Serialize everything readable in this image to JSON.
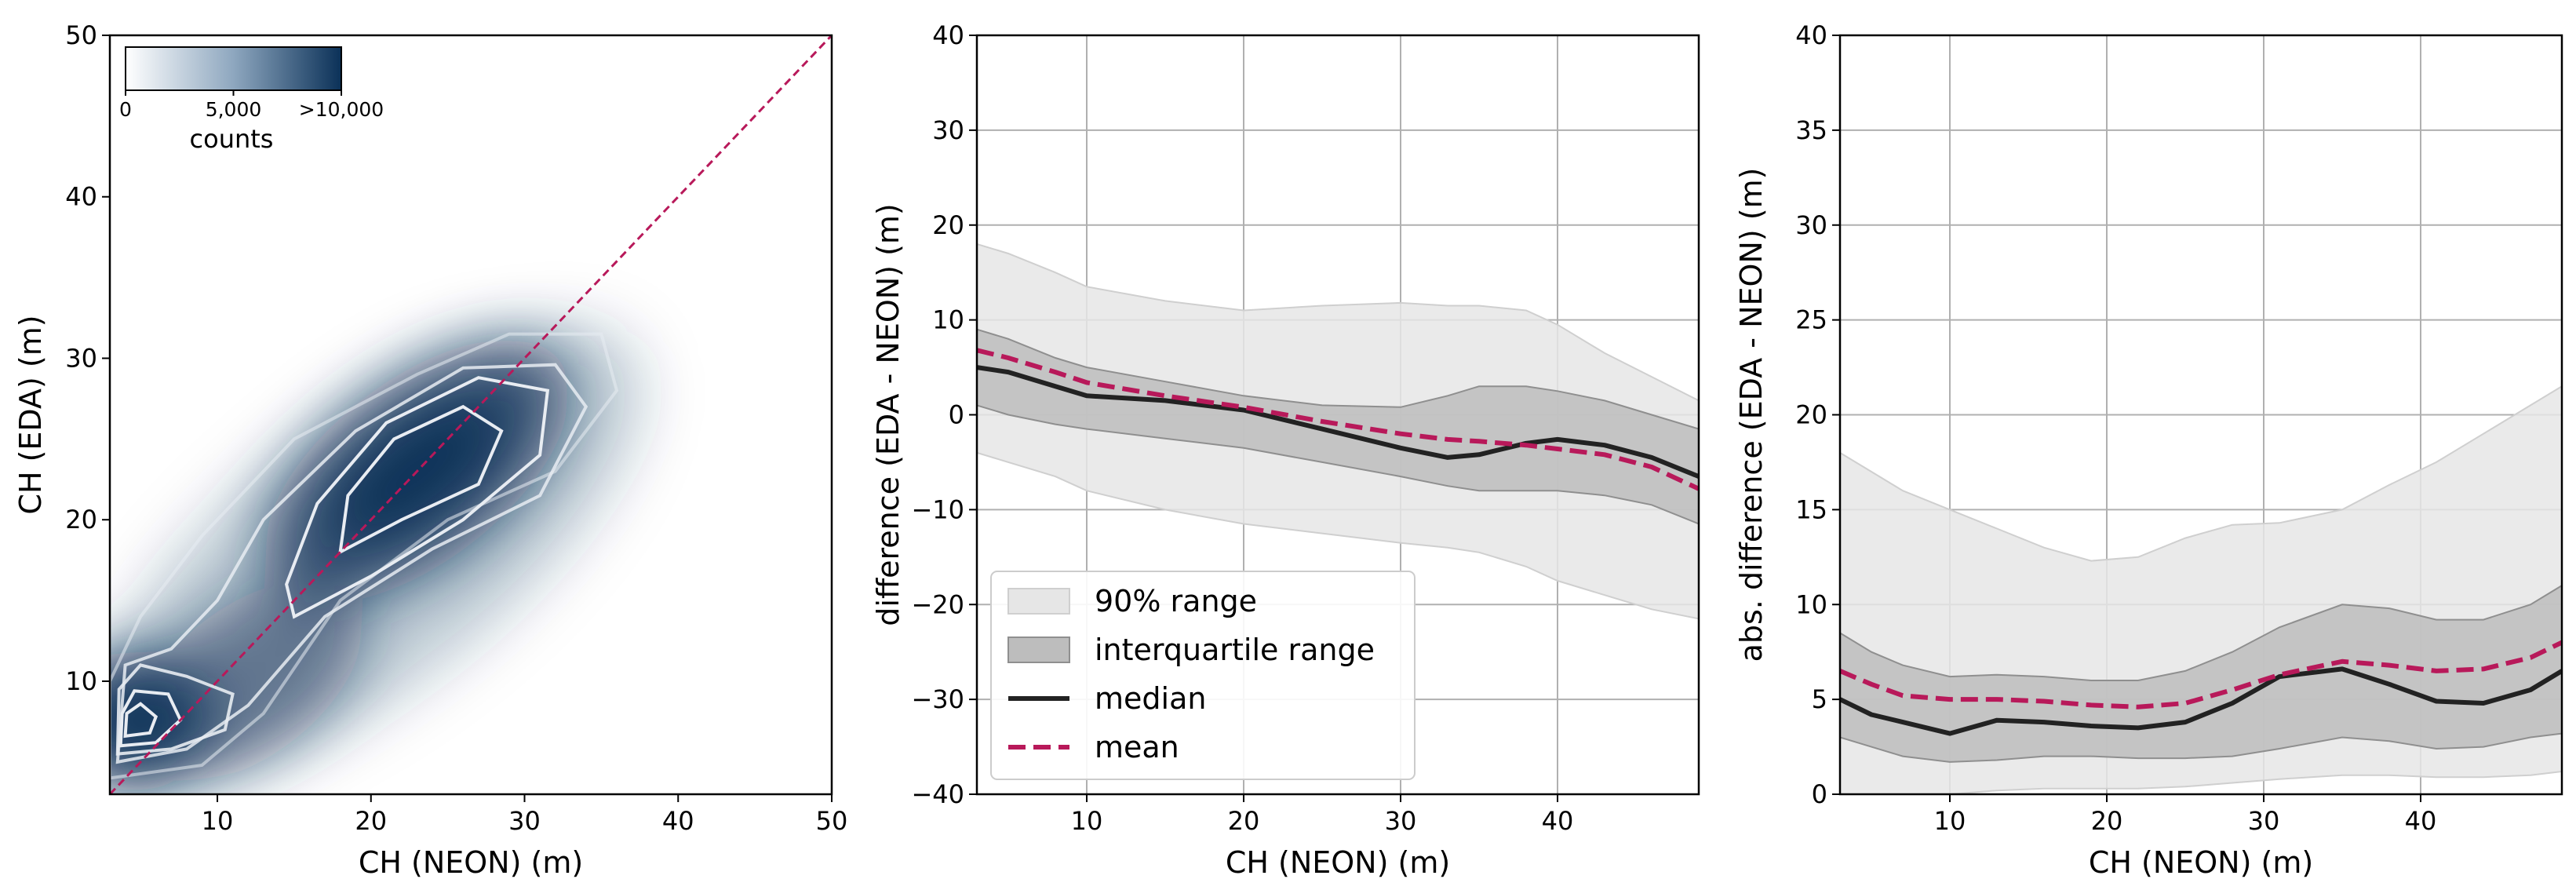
{
  "colors": {
    "density_dark": "#0b3158",
    "accent": "#b8195a",
    "median": "#222222",
    "iqr": "#bdbdbd",
    "range90": "#e6e6e6",
    "contour": "#e8ecf2",
    "grid": "#b0b0b0"
  },
  "chart_data": [
    {
      "type": "heatmap",
      "xlabel": "CH (NEON) (m)",
      "ylabel": "CH (EDA) (m)",
      "xlim": [
        3,
        50
      ],
      "ylim": [
        3,
        50
      ],
      "xticks": [
        10,
        20,
        30,
        40,
        50
      ],
      "yticks": [
        10,
        20,
        30,
        40,
        50
      ],
      "grid": false,
      "one_to_one_line": true,
      "colorbar": {
        "label": "counts",
        "range": [
          0,
          10000
        ],
        "tick_labels": [
          "0",
          "5,000",
          ">10,000"
        ],
        "tick_values": [
          0,
          5000,
          10000
        ],
        "placement": "top-left"
      },
      "density_modes": [
        {
          "x": 4.5,
          "y": 7.5,
          "relative_peak": 1.0
        },
        {
          "x": 23.0,
          "y": 23.0,
          "relative_peak": 0.9
        }
      ],
      "contour_levels": 5
    },
    {
      "type": "area",
      "xlabel": "CH (NEON) (m)",
      "ylabel": "difference (EDA - NEON) (m)",
      "xlim": [
        3,
        49
      ],
      "ylim": [
        -40,
        40
      ],
      "xticks": [
        10,
        20,
        30,
        40
      ],
      "yticks": [
        -40,
        -30,
        -20,
        -10,
        0,
        10,
        20,
        30,
        40
      ],
      "grid": true,
      "legend": {
        "placement": "lower-left",
        "entries": [
          "90% range",
          "interquartile range",
          "median",
          "mean"
        ]
      },
      "x": [
        3,
        5,
        8,
        10,
        15,
        20,
        25,
        30,
        33,
        35,
        38,
        40,
        43,
        46,
        49
      ],
      "series": [
        {
          "name": "90% range (upper)",
          "values": [
            18,
            17,
            15,
            13.5,
            12,
            11,
            11.5,
            11.8,
            11.5,
            11.5,
            11,
            9.5,
            6.5,
            4,
            1.5
          ]
        },
        {
          "name": "90% range (lower)",
          "values": [
            -4,
            -5,
            -6.5,
            -8,
            -10,
            -11.5,
            -12.5,
            -13.5,
            -14,
            -14.5,
            -16,
            -17.5,
            -19,
            -20.5,
            -21.5
          ]
        },
        {
          "name": "interquartile range (upper)",
          "values": [
            9,
            8,
            6,
            5,
            3.5,
            2,
            1,
            0.8,
            2,
            3,
            3,
            2.5,
            1.5,
            0,
            -1.5
          ]
        },
        {
          "name": "interquartile range (lower)",
          "values": [
            1,
            0,
            -1,
            -1.5,
            -2.5,
            -3.5,
            -5,
            -6.5,
            -7.5,
            -8,
            -8,
            -8,
            -8.5,
            -9.5,
            -11.5
          ]
        },
        {
          "name": "median",
          "values": [
            5,
            4.5,
            3,
            2,
            1.5,
            0.5,
            -1.5,
            -3.5,
            -4.5,
            -4.2,
            -3,
            -2.6,
            -3.2,
            -4.5,
            -6.5
          ]
        },
        {
          "name": "mean",
          "values": [
            6.8,
            6,
            4.5,
            3.4,
            2,
            0.8,
            -0.7,
            -2,
            -2.6,
            -2.8,
            -3.2,
            -3.6,
            -4.2,
            -5.5,
            -7.8
          ]
        }
      ]
    },
    {
      "type": "area",
      "xlabel": "CH (NEON) (m)",
      "ylabel": "abs. difference (EDA - NEON) (m)",
      "xlim": [
        3,
        49
      ],
      "ylim": [
        0,
        40
      ],
      "xticks": [
        10,
        20,
        30,
        40
      ],
      "yticks": [
        0,
        5,
        10,
        15,
        20,
        25,
        30,
        35,
        40
      ],
      "grid": true,
      "x": [
        3,
        5,
        7,
        10,
        13,
        16,
        19,
        22,
        25,
        28,
        31,
        35,
        38,
        41,
        44,
        47,
        49
      ],
      "series": [
        {
          "name": "90% range (upper)",
          "values": [
            18,
            17,
            16,
            15,
            14,
            13,
            12.3,
            12.5,
            13.5,
            14.2,
            14.3,
            15,
            16.3,
            17.5,
            19,
            20.5,
            21.5
          ]
        },
        {
          "name": "90% range (lower)",
          "values": [
            0,
            0,
            0,
            0,
            0.2,
            0.3,
            0.3,
            0.3,
            0.4,
            0.6,
            0.8,
            1,
            1,
            0.9,
            0.9,
            1,
            1.2
          ]
        },
        {
          "name": "interquartile range (upper)",
          "values": [
            8.5,
            7.5,
            6.8,
            6.2,
            6.3,
            6.2,
            6,
            6,
            6.5,
            7.5,
            8.8,
            10,
            9.8,
            9.2,
            9.2,
            10,
            11
          ]
        },
        {
          "name": "interquartile range (lower)",
          "values": [
            3,
            2.5,
            2,
            1.7,
            1.8,
            2,
            2,
            1.9,
            1.9,
            2,
            2.4,
            3,
            2.8,
            2.4,
            2.5,
            3,
            3.2
          ]
        },
        {
          "name": "median",
          "values": [
            5,
            4.2,
            3.8,
            3.2,
            3.9,
            3.8,
            3.6,
            3.5,
            3.8,
            4.8,
            6.2,
            6.6,
            5.8,
            4.9,
            4.8,
            5.5,
            6.5
          ]
        },
        {
          "name": "mean",
          "values": [
            6.5,
            5.8,
            5.2,
            5,
            5,
            4.9,
            4.7,
            4.6,
            4.8,
            5.5,
            6.3,
            7,
            6.8,
            6.5,
            6.6,
            7.2,
            8
          ]
        }
      ]
    }
  ]
}
